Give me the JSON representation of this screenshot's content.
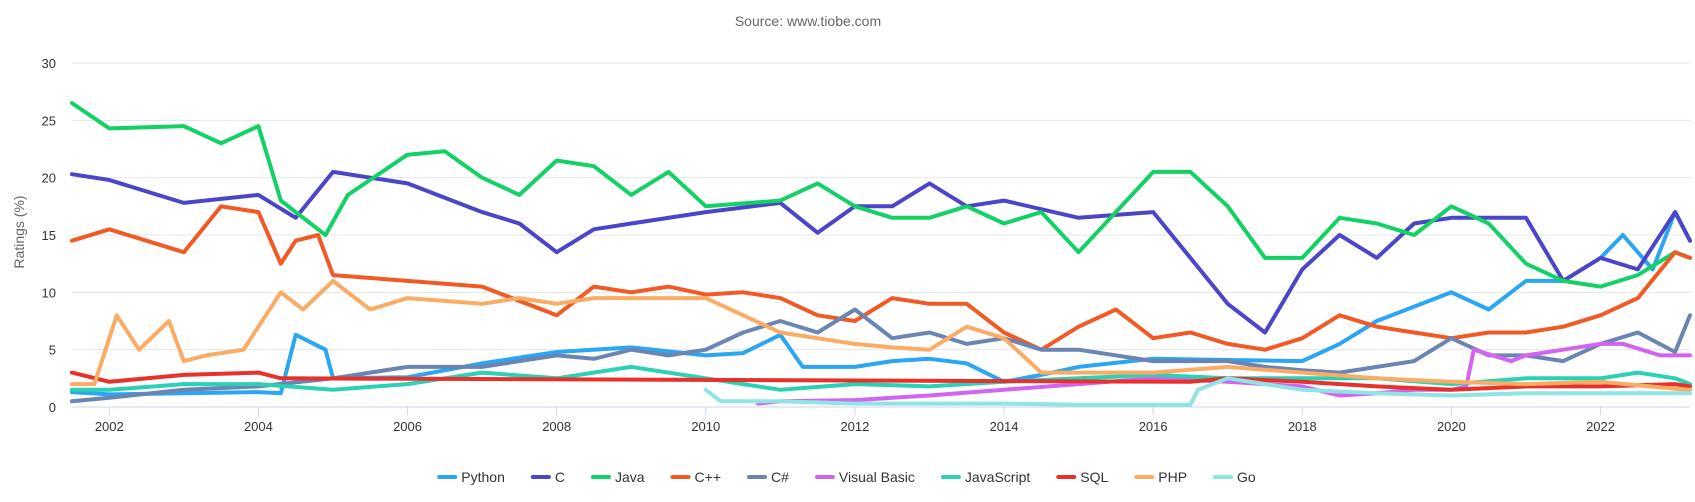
{
  "chart_data": {
    "type": "line",
    "title": "",
    "subtitle": "Source: www.tiobe.com",
    "xlabel": "",
    "ylabel": "Ratings (%)",
    "xlim": [
      2001.5,
      2023.2
    ],
    "ylim": [
      0,
      30
    ],
    "x_ticks": [
      2002,
      2004,
      2006,
      2008,
      2010,
      2012,
      2014,
      2016,
      2018,
      2020,
      2022
    ],
    "y_ticks": [
      0,
      5,
      10,
      15,
      20,
      25,
      30
    ],
    "grid": true,
    "legend_position": "bottom",
    "series": [
      {
        "name": "Python",
        "color": "#2aa6f2",
        "x": [
          2001.5,
          2002,
          2003,
          2004,
          2004.3,
          2004.5,
          2004.9,
          2005,
          2006,
          2007,
          2008,
          2009,
          2010,
          2010.5,
          2011,
          2011.3,
          2012,
          2012.5,
          2013,
          2013.5,
          2014,
          2014.5,
          2015,
          2016,
          2017,
          2018,
          2018.5,
          2019,
          2020,
          2020.5,
          2021,
          2021.5,
          2022,
          2022.3,
          2022.7,
          2023,
          2023.2
        ],
        "y": [
          1.3,
          1.1,
          1.2,
          1.3,
          1.2,
          6.3,
          5,
          2.5,
          2.6,
          3.8,
          4.8,
          5.2,
          4.5,
          4.7,
          6.3,
          3.5,
          3.5,
          4,
          4.2,
          3.8,
          2.2,
          2.8,
          3.5,
          4.2,
          4.1,
          4,
          5.5,
          7.5,
          10,
          8.5,
          11,
          11,
          13,
          15,
          12,
          17,
          14.5
        ]
      },
      {
        "name": "C",
        "color": "#4b46c8",
        "x": [
          2001.5,
          2002,
          2003,
          2004,
          2004.5,
          2005,
          2006,
          2007,
          2007.5,
          2008,
          2008.5,
          2009,
          2010,
          2011,
          2011.5,
          2012,
          2012.5,
          2013,
          2013.5,
          2014,
          2015,
          2016,
          2016.5,
          2017,
          2017.5,
          2018,
          2018.5,
          2019,
          2019.5,
          2020,
          2020.5,
          2021,
          2021.5,
          2022,
          2022.5,
          2023,
          2023.2
        ],
        "y": [
          20.3,
          19.8,
          17.8,
          18.5,
          16.5,
          20.5,
          19.5,
          17,
          16,
          13.5,
          15.5,
          16,
          17,
          17.8,
          15.2,
          17.5,
          17.5,
          19.5,
          17.5,
          18,
          16.5,
          17,
          13,
          9,
          6.5,
          12,
          15,
          13,
          16,
          16.5,
          16.5,
          16.5,
          11,
          13,
          12,
          17,
          14.5
        ]
      },
      {
        "name": "Java",
        "color": "#12d266",
        "x": [
          2001.5,
          2002,
          2003,
          2003.5,
          2004,
          2004.3,
          2004.5,
          2004.9,
          2005.2,
          2006,
          2006.5,
          2007,
          2007.5,
          2008,
          2008.5,
          2009,
          2009.5,
          2010,
          2011,
          2011.5,
          2012,
          2012.5,
          2013,
          2013.5,
          2014,
          2014.5,
          2015,
          2016,
          2016.5,
          2017,
          2017.5,
          2018,
          2018.5,
          2019,
          2019.5,
          2020,
          2020.5,
          2021,
          2021.5,
          2022,
          2022.5,
          2023,
          2023.2
        ],
        "y": [
          26.5,
          24.3,
          24.5,
          23,
          24.5,
          18,
          17,
          15,
          18.5,
          22,
          22.3,
          20,
          18.5,
          21.5,
          21,
          18.5,
          20.5,
          17.5,
          18,
          19.5,
          17.5,
          16.5,
          16.5,
          17.5,
          16,
          17,
          13.5,
          20.5,
          20.5,
          17.5,
          13,
          13,
          16.5,
          16,
          15,
          17.5,
          16,
          12.5,
          11,
          10.5,
          11.5,
          13.5,
          13
        ]
      },
      {
        "name": "C++",
        "color": "#f15a24",
        "x": [
          2001.5,
          2002,
          2003,
          2003.5,
          2004,
          2004.3,
          2004.5,
          2004.8,
          2005,
          2006,
          2007,
          2008,
          2008.5,
          2009,
          2009.5,
          2010,
          2010.5,
          2011,
          2011.5,
          2012,
          2012.5,
          2013,
          2013.5,
          2014,
          2014.5,
          2015,
          2015.5,
          2016,
          2016.5,
          2017,
          2017.5,
          2018,
          2018.5,
          2019,
          2019.5,
          2020,
          2020.5,
          2021,
          2021.5,
          2022,
          2022.5,
          2023,
          2023.2
        ],
        "y": [
          14.5,
          15.5,
          13.5,
          17.5,
          17,
          12.5,
          14.5,
          15,
          11.5,
          11,
          10.5,
          8,
          10.5,
          10,
          10.5,
          9.8,
          10,
          9.5,
          8,
          7.5,
          9.5,
          9,
          9,
          6.5,
          5,
          7,
          8.5,
          6,
          6.5,
          5.5,
          5,
          6,
          8,
          7,
          6.5,
          6,
          6.5,
          6.5,
          7,
          8,
          9.5,
          13.5,
          13
        ]
      },
      {
        "name": "C#",
        "color": "#6a84b3",
        "x": [
          2001.5,
          2002,
          2003,
          2004,
          2005,
          2006,
          2007,
          2008,
          2008.5,
          2009,
          2009.5,
          2010,
          2010.5,
          2011,
          2011.5,
          2012,
          2012.5,
          2013,
          2013.5,
          2014,
          2014.5,
          2015,
          2016,
          2017,
          2017.5,
          2018,
          2018.5,
          2019,
          2019.5,
          2020,
          2020.5,
          2021,
          2021.5,
          2022,
          2022.5,
          2023,
          2023.2
        ],
        "y": [
          0.5,
          0.8,
          1.5,
          1.8,
          2.5,
          3.5,
          3.5,
          4.5,
          4.2,
          5,
          4.5,
          5,
          6.5,
          7.5,
          6.5,
          8.5,
          6,
          6.5,
          5.5,
          6,
          5,
          5,
          4,
          4,
          3.5,
          3.2,
          3,
          3.5,
          4,
          6,
          4.5,
          4.5,
          4,
          5.5,
          6.5,
          4.8,
          8
        ]
      },
      {
        "name": "Visual Basic",
        "color": "#d264f0",
        "x": [
          2010.7,
          2011,
          2012,
          2012.5,
          2013,
          2014,
          2015,
          2016,
          2017,
          2018,
          2018.5,
          2019,
          2019.5,
          2020,
          2020.2,
          2020.3,
          2020.8,
          2021,
          2021.5,
          2022,
          2022.3,
          2022.8,
          2023,
          2023.2
        ],
        "y": [
          0.3,
          0.5,
          0.6,
          0.8,
          1,
          1.5,
          2,
          2.5,
          2.2,
          1.8,
          1,
          1.2,
          1.5,
          1.5,
          1.8,
          5,
          4,
          4.5,
          5,
          5.5,
          5.5,
          4.5,
          4.5,
          4.5
        ]
      },
      {
        "name": "JavaScript",
        "color": "#2ad1b5",
        "x": [
          2001.5,
          2002,
          2003,
          2004,
          2005,
          2006,
          2007,
          2008,
          2009,
          2010,
          2010.5,
          2011,
          2012,
          2013,
          2014,
          2015,
          2016,
          2017,
          2018,
          2019,
          2020,
          2021,
          2022,
          2022.5,
          2023,
          2023.2
        ],
        "y": [
          1.5,
          1.5,
          2,
          2,
          1.5,
          2,
          3,
          2.5,
          3.5,
          2.5,
          2,
          1.5,
          2,
          1.8,
          2.2,
          2.5,
          2.8,
          2.5,
          2.5,
          2.5,
          2,
          2.5,
          2.5,
          3,
          2.5,
          2
        ]
      },
      {
        "name": "SQL",
        "color": "#e8312a",
        "x": [
          2001.5,
          2002,
          2003,
          2004,
          2004.3,
          2016.5,
          2017,
          2018,
          2019,
          2020,
          2021,
          2022,
          2023,
          2023.2
        ],
        "y": [
          3,
          2.2,
          2.8,
          3,
          2.5,
          2.2,
          2.5,
          2.2,
          1.8,
          1.5,
          1.8,
          1.8,
          2,
          1.8
        ]
      },
      {
        "name": "PHP",
        "color": "#fbac64",
        "x": [
          2001.5,
          2001.8,
          2002.1,
          2002.4,
          2002.8,
          2003,
          2003.3,
          2003.8,
          2004,
          2004.3,
          2004.6,
          2005,
          2005.5,
          2006,
          2007,
          2007.5,
          2008,
          2008.5,
          2009,
          2010,
          2010.5,
          2011,
          2011.5,
          2012,
          2012.5,
          2013,
          2013.5,
          2014,
          2014.5,
          2015,
          2016,
          2017,
          2018,
          2019,
          2020,
          2021,
          2022,
          2023,
          2023.2
        ],
        "y": [
          2,
          2,
          8,
          5,
          7.5,
          4,
          4.5,
          5,
          7,
          10,
          8.5,
          11,
          8.5,
          9.5,
          9,
          9.5,
          9,
          9.5,
          9.5,
          9.5,
          8,
          6.5,
          6,
          5.5,
          5.2,
          5,
          7,
          6,
          3,
          3,
          3,
          3.5,
          3,
          2.5,
          2.2,
          2,
          2.2,
          1.6,
          1.5
        ]
      },
      {
        "name": "Go",
        "color": "#8fe4e4",
        "x": [
          2010,
          2010.2,
          2011,
          2012,
          2013,
          2014,
          2015,
          2016,
          2016.5,
          2016.6,
          2017,
          2018,
          2019,
          2020,
          2021,
          2022,
          2023,
          2023.2
        ],
        "y": [
          1.5,
          0.5,
          0.5,
          0.3,
          0.3,
          0.3,
          0.2,
          0.2,
          0.2,
          1.5,
          2.5,
          1.5,
          1.2,
          1,
          1.2,
          1.2,
          1.2,
          1.2
        ]
      }
    ]
  }
}
